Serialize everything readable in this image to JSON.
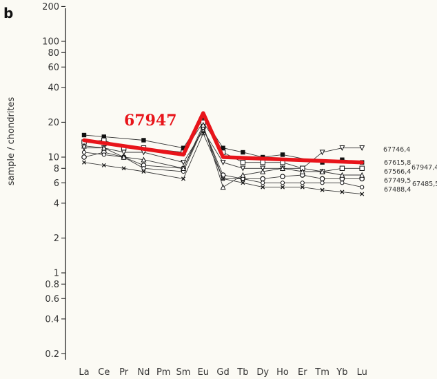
{
  "panel_label": "b",
  "chart_data": {
    "type": "line",
    "y_scale": "log",
    "ylabel": "sample / chondrites",
    "ylim": [
      0.15,
      300
    ],
    "ytick_values": [
      0.2,
      0.4,
      0.6,
      0.8,
      1,
      2,
      4,
      6,
      8,
      10,
      20,
      40,
      60,
      80,
      100,
      200
    ],
    "ytick_labels": [
      "0.2",
      "0.4",
      "0.6",
      "0.8",
      "1",
      "2",
      "4",
      "6",
      "8",
      "10",
      "20",
      "40",
      "60",
      "80",
      "100",
      "200"
    ],
    "categories": [
      "La",
      "Ce",
      "Pr",
      "Nd",
      "Pm",
      "Sm",
      "Eu",
      "Gd",
      "Tb",
      "Dy",
      "Ho",
      "Er",
      "Tm",
      "Yb",
      "Lu"
    ],
    "xtick_labels": [
      "La",
      "Ce",
      "Pr",
      "Nd",
      "Pm",
      "Sm",
      "Eu",
      "Gd",
      "Tb",
      "Dy",
      "Ho",
      "Er",
      "Tm",
      "Yb",
      "Lu"
    ],
    "highlight": {
      "label": "67947",
      "color": "#e8141a",
      "values": [
        14,
        null,
        null,
        null,
        null,
        10.5,
        24,
        10,
        null,
        null,
        null,
        null,
        null,
        null,
        9
      ]
    },
    "series": [
      {
        "name": "67746,4",
        "marker": "triangle-down",
        "values": [
          12,
          12,
          11,
          11,
          null,
          9,
          17,
          9,
          8,
          8,
          8,
          8,
          11,
          12,
          12
        ]
      },
      {
        "name": "67947,4",
        "marker": "filled-square",
        "values": [
          15.5,
          15,
          null,
          14,
          null,
          12,
          22,
          12,
          11,
          10,
          10.5,
          null,
          9,
          9.5,
          9
        ]
      },
      {
        "name": "67615,8",
        "marker": "open-square",
        "values": [
          13.5,
          14,
          12,
          12,
          null,
          11,
          20,
          11,
          9,
          9,
          9,
          8,
          7.5,
          8,
          8
        ]
      },
      {
        "name": "67566,4",
        "marker": "circle",
        "values": [
          10,
          11,
          10,
          8.5,
          null,
          8,
          18,
          7,
          6.5,
          6.5,
          6.8,
          7,
          6.5,
          6.5,
          6.5
        ]
      },
      {
        "name": "67749,5",
        "marker": "open-circle",
        "values": [
          11,
          10.5,
          10,
          8,
          null,
          7.5,
          18,
          6.5,
          6.5,
          6,
          6,
          6,
          6,
          6,
          5.5
        ]
      },
      {
        "name": "67485,5",
        "marker": "triangle",
        "values": [
          12.5,
          12,
          10,
          9.5,
          null,
          8,
          19,
          5.5,
          7,
          7.5,
          8,
          7.5,
          7.5,
          7,
          7
        ]
      },
      {
        "name": "67488,4",
        "marker": "x",
        "values": [
          9,
          8.5,
          8,
          7.5,
          null,
          6.5,
          16,
          6.5,
          6,
          5.5,
          5.5,
          5.5,
          5.2,
          5,
          4.8
        ]
      }
    ],
    "right_labels": [
      "67746,4",
      "67947,4",
      "67615,8",
      "67566,4",
      "67749,5",
      "67485,5",
      "67488,4"
    ],
    "grid": false,
    "legend": "inline-right"
  }
}
